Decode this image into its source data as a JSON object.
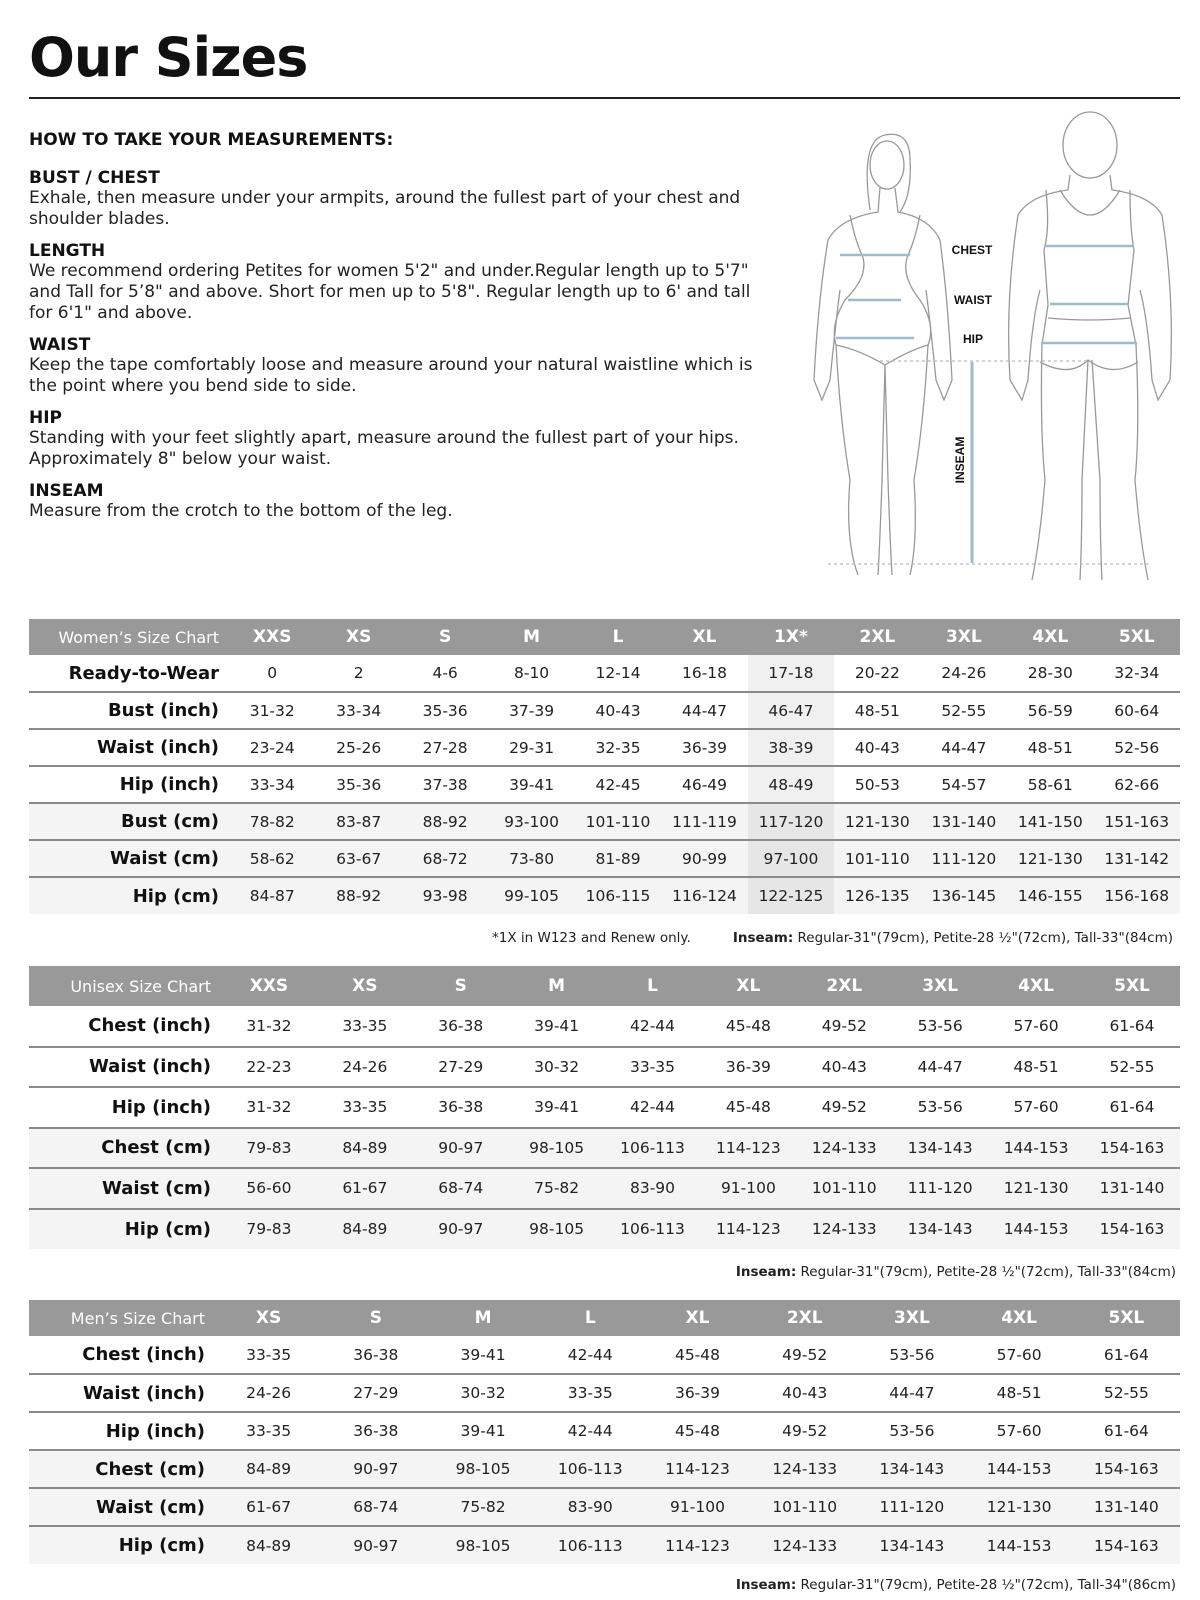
{
  "title": "Our Sizes",
  "instructions": {
    "heading": "HOW TO TAKE YOUR MEASUREMENTS:",
    "sections": [
      {
        "title": "BUST / CHEST",
        "text": "Exhale, then measure under your armpits, around the fullest part of your chest and shoulder blades."
      },
      {
        "title": "LENGTH",
        "text": "We recommend ordering Petites for women 5'2\" and under.Regular length up to 5'7\" and Tall for 5’8\" and above. Short for men up to 5'8\". Regular length up to 6' and tall for 6'1\" and above."
      },
      {
        "title": "WAIST",
        "text": "Keep the tape comfortably loose and measure around your natural waistline which is the point where you bend side to side."
      },
      {
        "title": "HIP",
        "text": "Standing with your feet slightly apart, measure around the fullest part of your hips. Approximately 8\" below your waist."
      },
      {
        "title": "INSEAM",
        "text": "Measure from the crotch to the bottom of the leg."
      }
    ]
  },
  "figure_labels": {
    "chest": "CHEST",
    "waist": "WAIST",
    "hip": "HIP",
    "inseam": "INSEAM"
  },
  "colors": {
    "header": "#999999",
    "measure_line": "#9bbccb",
    "highlight": "#e6e6e6"
  },
  "women": {
    "label": "Women’s Size Chart",
    "sizes": [
      "XXS",
      "XS",
      "S",
      "M",
      "L",
      "XL",
      "1X*",
      "2XL",
      "3XL",
      "4XL",
      "5XL"
    ],
    "highlight_column": "1X*",
    "rows": [
      {
        "label": "Ready-to-Wear",
        "unit": "size",
        "values": [
          "0",
          "2",
          "4-6",
          "8-10",
          "12-14",
          "16-18",
          "17-18",
          "20-22",
          "24-26",
          "28-30",
          "32-34"
        ]
      },
      {
        "label": "Bust (inch)",
        "unit": "inch",
        "values": [
          "31-32",
          "33-34",
          "35-36",
          "37-39",
          "40-43",
          "44-47",
          "46-47",
          "48-51",
          "52-55",
          "56-59",
          "60-64"
        ]
      },
      {
        "label": "Waist (inch)",
        "unit": "inch",
        "values": [
          "23-24",
          "25-26",
          "27-28",
          "29-31",
          "32-35",
          "36-39",
          "38-39",
          "40-43",
          "44-47",
          "48-51",
          "52-56"
        ]
      },
      {
        "label": "Hip (inch)",
        "unit": "inch",
        "values": [
          "33-34",
          "35-36",
          "37-38",
          "39-41",
          "42-45",
          "46-49",
          "48-49",
          "50-53",
          "54-57",
          "58-61",
          "62-66"
        ]
      },
      {
        "label": "Bust (cm)",
        "unit": "cm",
        "values": [
          "78-82",
          "83-87",
          "88-92",
          "93-100",
          "101-110",
          "111-119",
          "117-120",
          "121-130",
          "131-140",
          "141-150",
          "151-163"
        ]
      },
      {
        "label": "Waist (cm)",
        "unit": "cm",
        "values": [
          "58-62",
          "63-67",
          "68-72",
          "73-80",
          "81-89",
          "90-99",
          "97-100",
          "101-110",
          "111-120",
          "121-130",
          "131-142"
        ]
      },
      {
        "label": "Hip (cm)",
        "unit": "cm",
        "values": [
          "84-87",
          "88-92",
          "93-98",
          "99-105",
          "106-115",
          "116-124",
          "122-125",
          "126-135",
          "136-145",
          "146-155",
          "156-168"
        ]
      }
    ],
    "footnote": "*1X in W123 and Renew only.",
    "inseam_label": "Inseam:",
    "inseam_text": " Regular-31\"(79cm), Petite-28 ½\"(72cm), Tall-33\"(84cm)"
  },
  "unisex": {
    "label": "Unisex Size Chart",
    "sizes": [
      "XXS",
      "XS",
      "S",
      "M",
      "L",
      "XL",
      "2XL",
      "3XL",
      "4XL",
      "5XL"
    ],
    "rows": [
      {
        "label": "Chest (inch)",
        "unit": "inch",
        "values": [
          "31-32",
          "33-35",
          "36-38",
          "39-41",
          "42-44",
          "45-48",
          "49-52",
          "53-56",
          "57-60",
          "61-64"
        ]
      },
      {
        "label": "Waist (inch)",
        "unit": "inch",
        "values": [
          "22-23",
          "24-26",
          "27-29",
          "30-32",
          "33-35",
          "36-39",
          "40-43",
          "44-47",
          "48-51",
          "52-55"
        ]
      },
      {
        "label": "Hip (inch)",
        "unit": "inch",
        "values": [
          "31-32",
          "33-35",
          "36-38",
          "39-41",
          "42-44",
          "45-48",
          "49-52",
          "53-56",
          "57-60",
          "61-64"
        ]
      },
      {
        "label": "Chest (cm)",
        "unit": "cm",
        "values": [
          "79-83",
          "84-89",
          "90-97",
          "98-105",
          "106-113",
          "114-123",
          "124-133",
          "134-143",
          "144-153",
          "154-163"
        ]
      },
      {
        "label": "Waist (cm)",
        "unit": "cm",
        "values": [
          "56-60",
          "61-67",
          "68-74",
          "75-82",
          "83-90",
          "91-100",
          "101-110",
          "111-120",
          "121-130",
          "131-140"
        ]
      },
      {
        "label": "Hip (cm)",
        "unit": "cm",
        "values": [
          "79-83",
          "84-89",
          "90-97",
          "98-105",
          "106-113",
          "114-123",
          "124-133",
          "134-143",
          "144-153",
          "154-163"
        ]
      }
    ],
    "inseam_label": "Inseam:",
    "inseam_text": " Regular-31\"(79cm), Petite-28 ½\"(72cm), Tall-33\"(84cm)"
  },
  "men": {
    "label": "Men’s Size Chart",
    "sizes": [
      "XS",
      "S",
      "M",
      "L",
      "XL",
      "2XL",
      "3XL",
      "4XL",
      "5XL"
    ],
    "rows": [
      {
        "label": "Chest (inch)",
        "unit": "inch",
        "values": [
          "33-35",
          "36-38",
          "39-41",
          "42-44",
          "45-48",
          "49-52",
          "53-56",
          "57-60",
          "61-64"
        ]
      },
      {
        "label": "Waist (inch)",
        "unit": "inch",
        "values": [
          "24-26",
          "27-29",
          "30-32",
          "33-35",
          "36-39",
          "40-43",
          "44-47",
          "48-51",
          "52-55"
        ]
      },
      {
        "label": "Hip (inch)",
        "unit": "inch",
        "values": [
          "33-35",
          "36-38",
          "39-41",
          "42-44",
          "45-48",
          "49-52",
          "53-56",
          "57-60",
          "61-64"
        ]
      },
      {
        "label": "Chest (cm)",
        "unit": "cm",
        "values": [
          "84-89",
          "90-97",
          "98-105",
          "106-113",
          "114-123",
          "124-133",
          "134-143",
          "144-153",
          "154-163"
        ]
      },
      {
        "label": "Waist (cm)",
        "unit": "cm",
        "values": [
          "61-67",
          "68-74",
          "75-82",
          "83-90",
          "91-100",
          "101-110",
          "111-120",
          "121-130",
          "131-140"
        ]
      },
      {
        "label": "Hip (cm)",
        "unit": "cm",
        "values": [
          "84-89",
          "90-97",
          "98-105",
          "106-113",
          "114-123",
          "124-133",
          "134-143",
          "144-153",
          "154-163"
        ]
      }
    ],
    "inseam_label": "Inseam:",
    "inseam_text": " Regular-31\"(79cm), Petite-28 ½\"(72cm), Tall-34\"(86cm)"
  }
}
